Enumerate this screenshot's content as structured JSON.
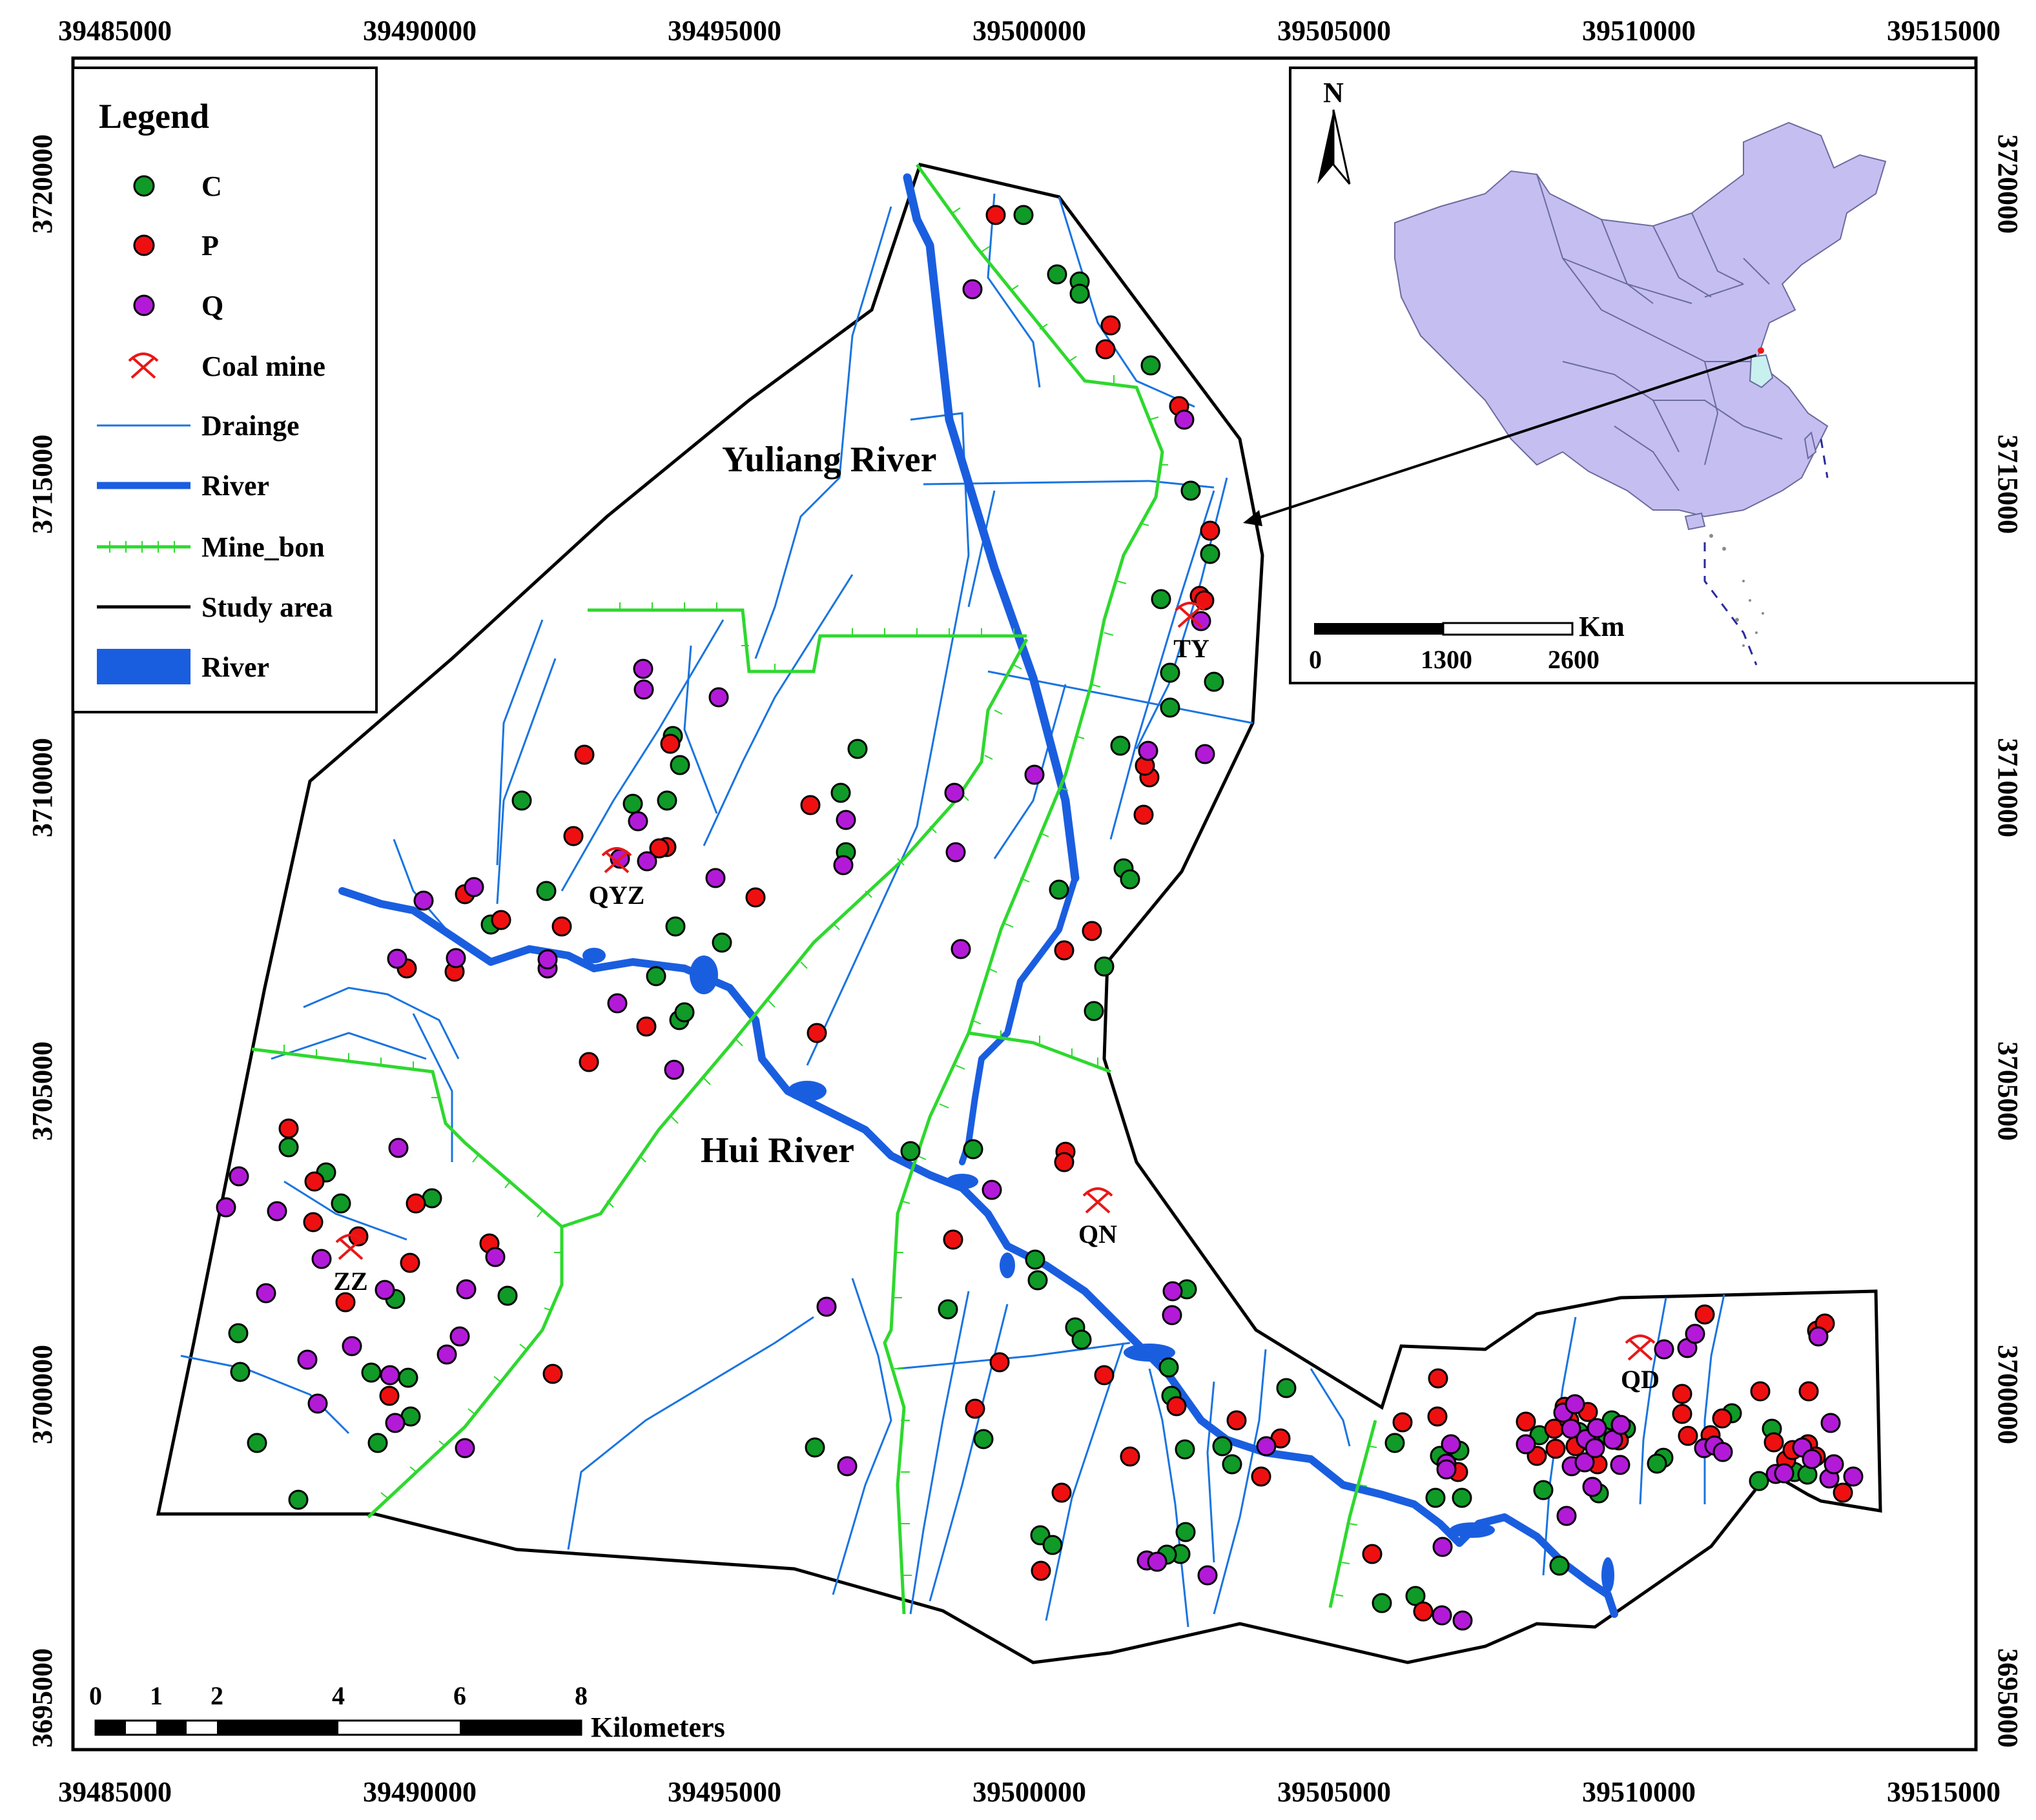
{
  "axes": {
    "x_ticks": [
      "39485000",
      "39490000",
      "39495000",
      "39500000",
      "39505000",
      "39510000",
      "39515000"
    ],
    "y_ticks": [
      "3720000",
      "3715000",
      "3710000",
      "3705000",
      "3700000",
      "3695000"
    ]
  },
  "legend": {
    "title": "Legend",
    "items": [
      {
        "label": "C",
        "kind": "dot",
        "color": "#109a27"
      },
      {
        "label": "P",
        "kind": "dot",
        "color": "#ee1010"
      },
      {
        "label": "Q",
        "kind": "dot",
        "color": "#b21ad8"
      },
      {
        "label": "Coal mine",
        "kind": "mine",
        "color": "#e81818"
      },
      {
        "label": "Drainge",
        "kind": "thin-line",
        "color": "#1a74e0"
      },
      {
        "label": "River",
        "kind": "thick-line",
        "color": "#1a5ee0"
      },
      {
        "label": "Mine_bon",
        "kind": "hatched-line",
        "color": "#2ed82e"
      },
      {
        "label": "Study area",
        "kind": "black-line",
        "color": "#000000"
      },
      {
        "label": "River",
        "kind": "fill",
        "color": "#1a5ee0"
      }
    ]
  },
  "labels": {
    "yuliang": "Yuliang River",
    "hui": "Hui River",
    "mines": [
      "QYZ",
      "TY",
      "QN",
      "ZZ",
      "QD"
    ]
  },
  "inset": {
    "north": "N",
    "scale_unit": "Km",
    "scale_ticks": [
      "0",
      "1300",
      "2600"
    ],
    "fill_color": "#c4bff0",
    "highlight_color": "#c8f0ef"
  },
  "scalebar": {
    "ticks": [
      "0",
      "1",
      "2",
      "4",
      "6",
      "8"
    ],
    "unit": "Kilometers"
  },
  "colors": {
    "c": "#109a27",
    "p": "#ee1010",
    "q": "#b21ad8",
    "drainage": "#1a74e0",
    "river": "#1a5ee0",
    "mine_boundary": "#2ed82e"
  }
}
